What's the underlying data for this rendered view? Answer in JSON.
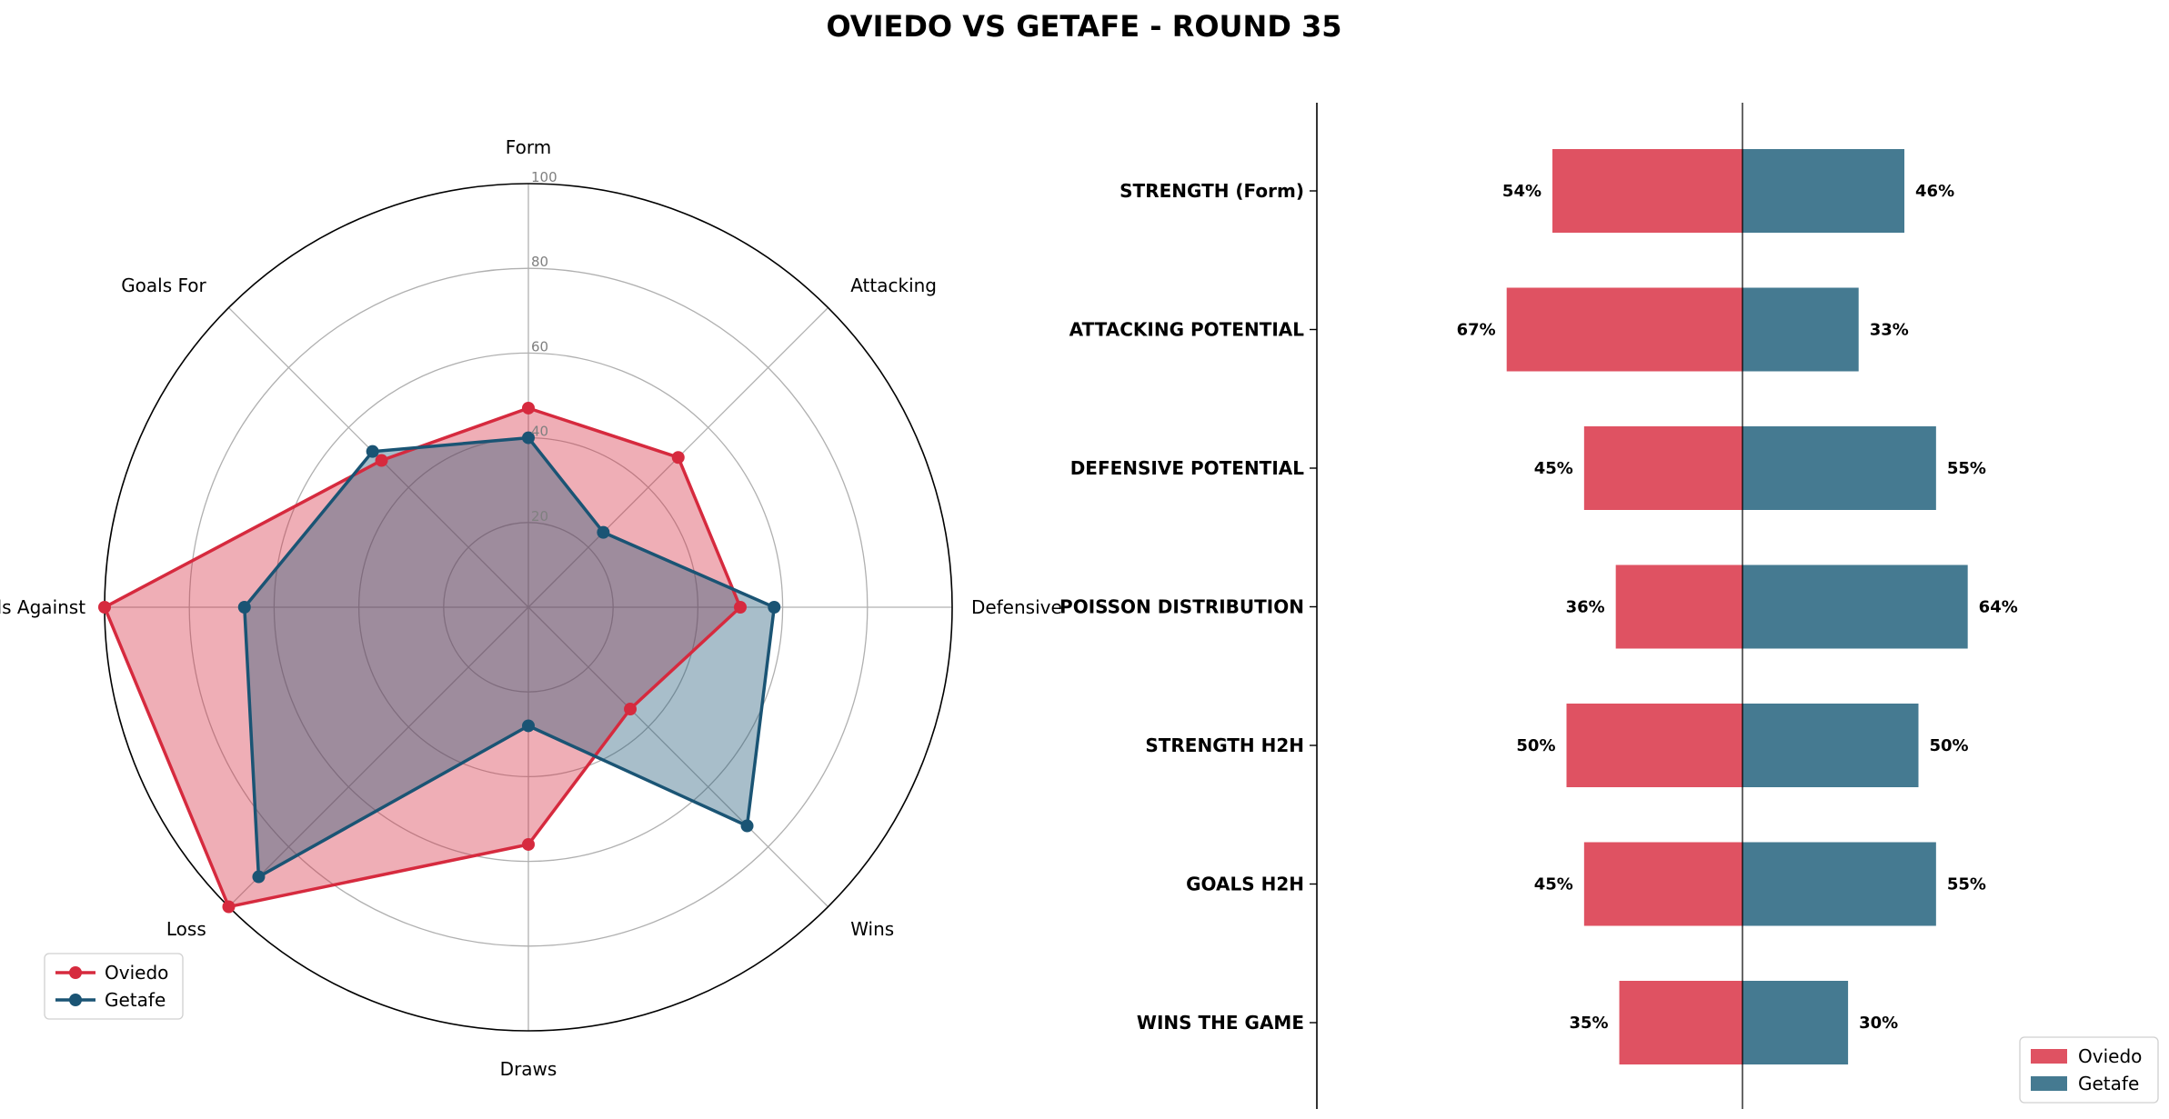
{
  "title": "OVIEDO VS GETAFE - ROUND 35",
  "colors": {
    "oviedo": "#d62a3e",
    "oviedo_bar": "#df5262",
    "getafe": "#1a5474",
    "getafe_bar": "#457a91"
  },
  "chart_data": [
    {
      "type": "radar",
      "axes": [
        "Form",
        "Attacking",
        "Defensive",
        "Wins",
        "Draws",
        "Loss",
        "Goals Against",
        "Goals For"
      ],
      "rlim": [
        0,
        100
      ],
      "rticks": [
        20,
        40,
        60,
        80,
        100
      ],
      "grid": true,
      "legend_position": "lower-left",
      "series": [
        {
          "name": "Oviedo",
          "values": [
            47,
            50,
            50,
            34,
            56,
            100,
            100,
            49
          ]
        },
        {
          "name": "Getafe",
          "values": [
            40,
            25,
            58,
            73,
            28,
            90,
            67,
            52
          ]
        }
      ]
    },
    {
      "type": "bar",
      "orientation": "horizontal-diverging",
      "categories": [
        "STRENGTH (Form)",
        "ATTACKING POTENTIAL",
        "DEFENSIVE POTENTIAL",
        "POISSON DISTRIBUTION",
        "STRENGTH H2H",
        "GOALS H2H",
        "WINS THE GAME"
      ],
      "xlim": [
        -120,
        120
      ],
      "legend_position": "lower-right",
      "series": [
        {
          "name": "Oviedo",
          "values": [
            54,
            67,
            45,
            36,
            50,
            45,
            35
          ],
          "labels": [
            "54%",
            "67%",
            "45%",
            "36%",
            "50%",
            "45%",
            "35%"
          ]
        },
        {
          "name": "Getafe",
          "values": [
            46,
            33,
            55,
            64,
            50,
            55,
            30
          ],
          "labels": [
            "46%",
            "33%",
            "55%",
            "64%",
            "50%",
            "55%",
            "30%"
          ]
        }
      ]
    }
  ]
}
